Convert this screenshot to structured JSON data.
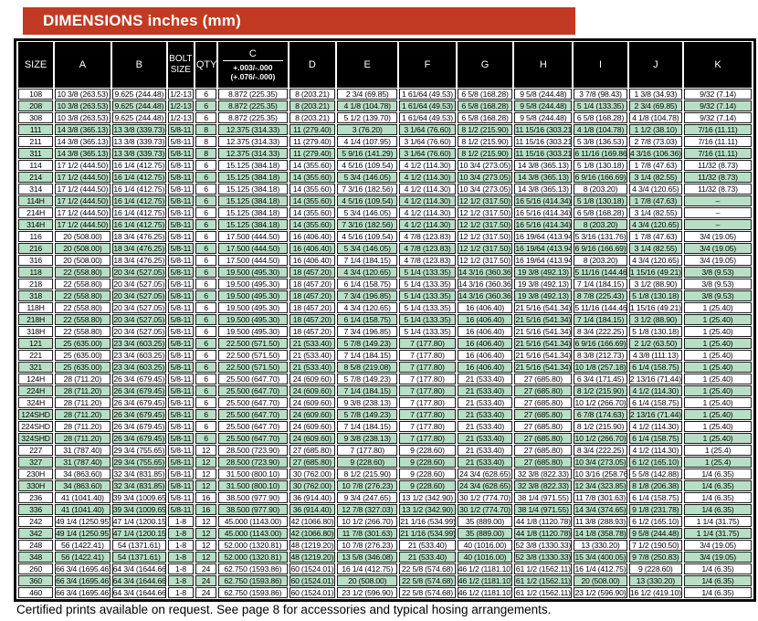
{
  "banner": {
    "title": "DIMENSIONS inches (mm)"
  },
  "footer": {
    "note": "Certified prints available on request. See page 8 for accessories and typical hosing arrangements."
  },
  "colors": {
    "banner_bg": "#c23a21",
    "header_bg": "#000000",
    "row_alt_green": "#b8dfc6",
    "border": "#000000"
  },
  "table": {
    "columns": [
      {
        "key": "size",
        "label": "SIZE"
      },
      {
        "key": "a",
        "label": "A"
      },
      {
        "key": "b",
        "label": "B"
      },
      {
        "key": "bolt-size",
        "label": "BOLT SIZE",
        "lines": [
          "BOLT",
          "SIZE"
        ]
      },
      {
        "key": "qty",
        "label": "QTY"
      },
      {
        "key": "c",
        "label": "C",
        "tolerances": [
          "+.003/-.000",
          "(+.076/-.000)"
        ]
      },
      {
        "key": "d",
        "label": "D"
      },
      {
        "key": "e",
        "label": "E"
      },
      {
        "key": "f",
        "label": "F"
      },
      {
        "key": "g",
        "label": "G"
      },
      {
        "key": "h",
        "label": "H"
      },
      {
        "key": "i",
        "label": "I"
      },
      {
        "key": "j",
        "label": "J"
      },
      {
        "key": "k",
        "label": "K"
      }
    ],
    "col_widths": [
      "4.9%",
      "7.8%",
      "7.6%",
      "3.6%",
      "3.0%",
      "9.7%",
      "6.5%",
      "8.5%",
      "7.9%",
      "7.8%",
      "8.1%",
      "7.5%",
      "7.5%",
      "9.5%"
    ],
    "rows": [
      [
        "108",
        "10 3/8 (263.53)",
        "9.625 (244.48)",
        "1/2-13",
        "6",
        "8.872 (225.35)",
        "8 (203.21)",
        "2 3/4 (69.85)",
        "1 61/64 (49.53)",
        "6 5/8 (168.28)",
        "9 5/8 (244.48)",
        "3 7/8 (98.43)",
        "1 3/8 (34.93)",
        "9/32 (7.14)"
      ],
      [
        "208",
        "10 3/8 (263.53)",
        "9.625 (244.48)",
        "1/2-13",
        "6",
        "8.872 (225.35)",
        "8 (203.21)",
        "4 1/8 (104.78)",
        "1 61/64 (49.53)",
        "6 5/8 (168.28)",
        "9 5/8 (244.48)",
        "5 1/4 (133.35)",
        "2 3/4 (69.85)",
        "9/32 (7.14)"
      ],
      [
        "308",
        "10 3/8 (263.53)",
        "9.625 (244.48)",
        "1/2-13",
        "6",
        "8.872 (225.35)",
        "8 (203.21)",
        "5 1/2 (139.70)",
        "1 61/64 (49.53)",
        "6 5/8 (168.28)",
        "9 5/8 (244.48)",
        "6 5/8 (168.28)",
        "4 1/8 (104.78)",
        "9/32 (7.14)"
      ],
      [
        "111",
        "14 3/8 (365.13)",
        "13 3/8 (339.73)",
        "5/8-11",
        "8",
        "12.375 (314.33)",
        "11 (279.40)",
        "3 (76.20)",
        "3 1/64 (76.60)",
        "8 1/2 (215.90)",
        "11 15/16 (303.21)",
        "4 1/8 (104.78)",
        "1 1/2 (38.10)",
        "7/16 (11.11)"
      ],
      [
        "211",
        "14 3/8 (365.13)",
        "13 3/8 (339.73)",
        "5/8-11",
        "8",
        "12.375 (314.33)",
        "11 (279.40)",
        "4 1/4 (107.95)",
        "3 1/64 (76.60)",
        "8 1/2 (215.90)",
        "11 15/16 (303.21)",
        "5 3/8 (136.53)",
        "2 7/8 (73.03)",
        "7/16 (11.11)"
      ],
      [
        "311",
        "14 3/8 (365.13)",
        "13 3/8 (339.73)",
        "5/8-11",
        "8",
        "12.375 (314.33)",
        "11 (279.40)",
        "5 9/16 (141.29)",
        "3 1/64 (76.60)",
        "8 1/2 (215.90)",
        "11 15/16 (303.21)",
        "6 11/16 (169.86)",
        "4 3/16 (106.36)",
        "7/16 (11.11)"
      ],
      [
        "114",
        "17 1/2 (444.50)",
        "16 1/4 (412.75)",
        "5/8-11",
        "6",
        "15.125 (384.18)",
        "14 (355.60)",
        "4 5/16 (109.54)",
        "4 1/2 (114.30)",
        "10 3/4 (273.05)",
        "14 3/8 (365.13)",
        "5 1/8 (130.18)",
        "1 7/8 (47.63)",
        "11/32 (8.73)"
      ],
      [
        "214",
        "17 1/2 (444.50)",
        "16 1/4 (412.75)",
        "5/8-11",
        "6",
        "15.125 (384.18)",
        "14 (355.60)",
        "5 3/4 (146.05)",
        "4 1/2 (114.30)",
        "10 3/4 (273.05)",
        "14 3/8 (365.13)",
        "6 9/16 (166.69)",
        "3 1/4 (82.55)",
        "11/32 (8.73)"
      ],
      [
        "314",
        "17 1/2 (444.50)",
        "16 1/4 (412.75)",
        "5/8-11",
        "6",
        "15.125 (384.18)",
        "14 (355.60)",
        "7 3/16 (182.56)",
        "4 1/2 (114.30)",
        "10 3/4 (273.05)",
        "14 3/8 (365.13)",
        "8 (203.20)",
        "4 3/4 (120.65)",
        "11/32 (8.73)"
      ],
      [
        "114H",
        "17 1/2 (444.50)",
        "16 1/4 (412.75)",
        "5/8-11",
        "6",
        "15.125 (384.18)",
        "14 (355.60)",
        "4 5/16 (109.54)",
        "4 1/2 (114.30)",
        "12 1/2 (317.50)",
        "16 5/16 (414.34)",
        "5 1/8 (130.18)",
        "1 7/8 (47.63)",
        "–"
      ],
      [
        "214H",
        "17 1/2 (444.50)",
        "16 1/4 (412.75)",
        "5/8-11",
        "6",
        "15.125 (384.18)",
        "14 (355.60)",
        "5 3/4 (146.05)",
        "4 1/2 (114.30)",
        "12 1/2 (317.50)",
        "16 5/16 (414.34)",
        "6 5/8 (168.28)",
        "3 1/4 (82.55)",
        "–"
      ],
      [
        "314H",
        "17 1/2 (444.50)",
        "16 1/4 (412.75)",
        "5/8-11",
        "6",
        "15.125 (384.18)",
        "14 (355.60)",
        "7 3/16 (182.56)",
        "4 1/2 (114.30)",
        "12 1/2 (317.50)",
        "16 5/16 (414.34)",
        "8 (203.20)",
        "4 3/4 (120.65)",
        "–"
      ],
      [
        "116",
        "20 (508.00)",
        "18 3/4 (476.25)",
        "5/8-11",
        "6",
        "17.500 (444.50)",
        "16 (406.40)",
        "4 5/16 (109.54)",
        "4 7/8 (123.83)",
        "12 1/2 (317.50)",
        "16 19/64 (413.94)",
        "5 3/16 (131.76)",
        "1 7/8 (47.63)",
        "3/4 (19.05)"
      ],
      [
        "216",
        "20 (508.00)",
        "18 3/4 (476.25)",
        "5/8-11",
        "6",
        "17.500 (444.50)",
        "16 (406.40)",
        "5 3/4 (146.05)",
        "4 7/8 (123.83)",
        "12 1/2 (317.50)",
        "16 19/64 (413.94)",
        "6 9/16 (166.69)",
        "3 1/4 (82.55)",
        "3/4 (19.05)"
      ],
      [
        "316",
        "20 (508.00)",
        "18 3/4 (476.25)",
        "5/8-11",
        "6",
        "17.500 (444.50)",
        "16 (406.40)",
        "7 1/4 (184.15)",
        "4 7/8 (123.83)",
        "12 1/2 (317.50)",
        "16 19/64 (413.94)",
        "8 (203.20)",
        "4 3/4 (120.65)",
        "3/4 (19.05)"
      ],
      [
        "118",
        "22 (558.80)",
        "20 3/4 (527.05)",
        "5/8-11",
        "6",
        "19.500 (495.30)",
        "18 (457.20)",
        "4 3/4 (120.65)",
        "5 1/4 (133.35)",
        "14 3/16 (360.36)",
        "19 3/8 (492.13)",
        "5 11/16 (144.46)",
        "1 15/16 (49.21)",
        "3/8 (9.53)"
      ],
      [
        "218",
        "22 (558.80)",
        "20 3/4 (527.05)",
        "5/8-11",
        "6",
        "19.500 (495.30)",
        "18 (457.20)",
        "6 1/4 (158.75)",
        "5 1/4 (133.35)",
        "14 3/16 (360.36)",
        "19 3/8 (492.13)",
        "7 1/4 (184.15)",
        "3 1/2 (88.90)",
        "3/8 (9.53)"
      ],
      [
        "318",
        "22 (558.80)",
        "20 3/4 (527.05)",
        "5/8-11",
        "6",
        "19.500 (495.30)",
        "18 (457.20)",
        "7 3/4 (196.85)",
        "5 1/4 (133.35)",
        "14 3/16 (360.36)",
        "19 3/8 (492.13)",
        "8 7/8 (225.43)",
        "5 1/8 (130.18)",
        "3/8 (9.53)"
      ],
      [
        "118H",
        "22 (558.80)",
        "20 3/4 (527.05)",
        "5/8-11",
        "6",
        "19.500 (495.30)",
        "18 (457.20)",
        "4 3/4 (120.65)",
        "5 1/4 (133.35)",
        "16 (406.40)",
        "21 5/16 (541.34)",
        "5 11/16 (144.46)",
        "1 15/16 (49.21)",
        "1 (25.40)"
      ],
      [
        "218H",
        "22 (558.80)",
        "20 3/4 (527.05)",
        "5/8-11",
        "6",
        "19.500 (495.30)",
        "18 (457.20)",
        "6 1/4 (158.75)",
        "5 1/4 (133.35)",
        "16 (406.40)",
        "21 5/16 (541.34)",
        "7 1/4 (184.15)",
        "3 1/2 (88.90)",
        "1 (25.40)"
      ],
      [
        "318H",
        "22 (558.80)",
        "20 3/4 (527.05)",
        "5/8-11",
        "6",
        "19.500 (495.30)",
        "18 (457.20)",
        "7 3/4 (196.85)",
        "5 1/4 (133.35)",
        "16 (406.40)",
        "21 5/16 (541.34)",
        "8 3/4 (222.25)",
        "5 1/8 (130.18)",
        "1 (25.40)"
      ],
      [
        "121",
        "25 (635.00)",
        "23 3/4 (603.25)",
        "5/8-11",
        "6",
        "22.500 (571.50)",
        "21 (533.40)",
        "5 7/8 (149.23)",
        "7 (177.80)",
        "16 (406.40)",
        "21 5/16 (541.34)",
        "6 9/16 (166.69)",
        "2 1/2 (63.50)",
        "1 (25.40)"
      ],
      [
        "221",
        "25 (635.00)",
        "23 3/4 (603.25)",
        "5/8-11",
        "6",
        "22.500 (571.50)",
        "21 (533.40)",
        "7 1/4 (184.15)",
        "7 (177.80)",
        "16 (406.40)",
        "21 5/16 (541.34)",
        "8 3/8 (212.73)",
        "4 3/8 (111.13)",
        "1 (25.40)"
      ],
      [
        "321",
        "25 (635.00)",
        "23 3/4 (603.25)",
        "5/8-11",
        "6",
        "22.500 (571.50)",
        "21 (533.40)",
        "8 5/8 (219.08)",
        "7 (177.80)",
        "16 (406.40)",
        "21 5/16 (541.34)",
        "10 1/8 (257.18)",
        "6 1/4 (158.75)",
        "1 (25.40)"
      ],
      [
        "124H",
        "28 (711.20)",
        "26 3/4 (679.45)",
        "5/8-11",
        "6",
        "25.500 (647.70)",
        "24 (609.60)",
        "5 7/8 (149.23)",
        "7 (177.80)",
        "21 (533.40)",
        "27 (685.80)",
        "6 3/4 (171.45)",
        "2 13/16 (71.44)",
        "1 (25.40)"
      ],
      [
        "224H",
        "28 (711.20)",
        "26 3/4 (679.45)",
        "5/8-11",
        "6",
        "25.500 (647.70)",
        "24 (609.60)",
        "7 1/4 (184.15)",
        "7 (177.80)",
        "21 (533.40)",
        "27 (685.80)",
        "8 1/2 (215.90)",
        "4 1/2 (114.30)",
        "1 (25.40)"
      ],
      [
        "324H",
        "28 (711.20)",
        "26 3/4 (679.45)",
        "5/8-11",
        "6",
        "25.500 (647.70)",
        "24 (609.60)",
        "9 3/8 (238.13)",
        "7 (177.80)",
        "21 (533.40)",
        "27 (685.80)",
        "10 1/2 (266.70)",
        "6 1/4 (158.75)",
        "1 (25.40)"
      ],
      [
        "124SHD",
        "28 (711.20)",
        "26 3/4 (679.45)",
        "5/8-11",
        "6",
        "25.500 (647.70)",
        "24 (609.60)",
        "5 7/8 (149.23)",
        "7 (177.80)",
        "21 (533.40)",
        "27 (685.80)",
        "6 7/8 (174.63)",
        "2 13/16 (71.44)",
        "1 (25.40)"
      ],
      [
        "224SHD",
        "28 (711.20)",
        "26 3/4 (679.45)",
        "5/8-11",
        "6",
        "25.500 (647.70)",
        "24 (609.60)",
        "7 1/4 (184.15)",
        "7 (177.80)",
        "21 (533.40)",
        "27 (685.80)",
        "8 1/2 (215.90)",
        "4 1/2 (114.30)",
        "1 (25.40)"
      ],
      [
        "324SHD",
        "28 (711.20)",
        "26 3/4 (679.45)",
        "5/8-11",
        "6",
        "25.500 (647.70)",
        "24 (609.60)",
        "9 3/8 (238.13)",
        "7 (177.80)",
        "21 (533.40)",
        "27 (685.80)",
        "10 1/2 (266.70)",
        "6 1/4 (158.75)",
        "1 (25.40)"
      ],
      [
        "227",
        "31 (787.40)",
        "29 3/4 (755.65)",
        "5/8-11",
        "12",
        "28.500 (723.90)",
        "27 (685.80)",
        "7 (177.80)",
        "9 (228.60)",
        "21 (533.40)",
        "27 (685.80)",
        "8 3/4 (222.25)",
        "4 1/2 (114.30)",
        "1 (25.4)"
      ],
      [
        "327",
        "31 (787.40)",
        "29 3/4 (755.65)",
        "5/8-11",
        "12",
        "28.500 (723.90)",
        "27 (685.80)",
        "9 (228.60)",
        "9 (228.60)",
        "21 (533.40)",
        "27 (685.80)",
        "10 3/4 (273.05)",
        "6 1/2 (165.10)",
        "1 (25.4)"
      ],
      [
        "230H",
        "34 (863.60)",
        "32 3/4 (831.85)",
        "5/8-11",
        "12",
        "31.500 (800.10)",
        "30 (762.00)",
        "8 1/2 (215.90)",
        "9 (228.60)",
        "24 3/4 (628.65)",
        "32 3/8 (822.33)",
        "10 3/16 (258.76)",
        "5 5/8 (142.88)",
        "1/4 (6.35)"
      ],
      [
        "330H",
        "34 (863.60)",
        "32 3/4 (831.85)",
        "5/8-11",
        "12",
        "31.500 (800.10)",
        "30 (762.00)",
        "10 7/8 (276.23)",
        "9 (228.60)",
        "24 3/4 (628.65)",
        "32 3/8 (822.33)",
        "12 3/4 (323.85)",
        "8 1/8 (206.38)",
        "1/4 (6.35)"
      ],
      [
        "236",
        "41 (1041.40)",
        "39 3/4 (1009.65)",
        "5/8-11",
        "16",
        "38.500 (977.90)",
        "36 (914.40)",
        "9 3/4 (247.65)",
        "13 1/2 (342.90)",
        "30 1/2 (774.70)",
        "38 1/4 (971.55)",
        "11 7/8 (301.63)",
        "6 1/4 (158.75)",
        "1/4 (6.35)"
      ],
      [
        "336",
        "41 (1041.40)",
        "39 3/4 (1009.65)",
        "5/8-11",
        "16",
        "38.500 (977.90)",
        "36 (914.40)",
        "12 7/8 (327.03)",
        "13 1/2 (342.90)",
        "30 1/2 (774.70)",
        "38 1/4 (971.55)",
        "14 3/4 (374.65)",
        "9 1/8 (231.78)",
        "1/4 (6.35)"
      ],
      [
        "242",
        "49 1/4 (1250.95)",
        "47 1/4 (1200.15)",
        "1-8",
        "12",
        "45.000 (1143.00)",
        "42 (1066.80)",
        "10 1/2 (266.70)",
        "21 1/16 (534.99)",
        "35 (889.00)",
        "44 1/8 (1120.78)",
        "11 3/8 (288.93)",
        "6 1/2 (165.10)",
        "1 1/4 (31.75)"
      ],
      [
        "342",
        "49 1/4 (1250.95)",
        "47 1/4 (1200.15)",
        "1-8",
        "12",
        "45.000 (1143.00)",
        "42 (1066.80)",
        "11 7/8 (301.63)",
        "21 1/16 (534.99)",
        "35 (889.00)",
        "44 1/8 (1120.78)",
        "14 1/8 (358.78)",
        "9 5/8 (244.48)",
        "1 1/4 (31.75)"
      ],
      [
        "248",
        "56 (1422.41)",
        "54 (1371.61)",
        "1-8",
        "12",
        "52.000 (1320.81)",
        "48 (1219.20)",
        "10 7/8 (276.23)",
        "21 (533.40)",
        "40 (1016.00)",
        "52 3/8 (1330.33)",
        "13 (330.20)",
        "7 1/2 (190.50)",
        "3/4 (19.05)"
      ],
      [
        "348",
        "56 (1422.41)",
        "54 (1371.61)",
        "1-8",
        "12",
        "52.000 (1320.81)",
        "48 (1219.20)",
        "13 5/8 (346.08)",
        "21 (533.40)",
        "40 (1016.00)",
        "52 3/8 (1330.33)",
        "15 3/4 (400.05)",
        "9 7/8 (250.83)",
        "3/4 (19.05)"
      ],
      [
        "260",
        "66 3/4 (1695.46)",
        "64 3/4 (1644.66)",
        "1-8",
        "24",
        "62.750 (1593.86)",
        "60 (1524.01)",
        "16 1/4 (412.75)",
        "22 5/8 (574.68)",
        "46 1/2 (1181.10)",
        "61 1/2 (1562.11)",
        "16 1/4 (412.75)",
        "9 (228.60)",
        "1/4 (6.35)"
      ],
      [
        "360",
        "66 3/4 (1695.46)",
        "64 3/4 (1644.66)",
        "1-8",
        "24",
        "62.750 (1593.86)",
        "60 (1524.01)",
        "20 (508.00)",
        "22 5/8 (574.68)",
        "46 1/2 (1181.10)",
        "61 1/2 (1562.11)",
        "20 (508.00)",
        "13 (330.20)",
        "1/4 (6.35)"
      ],
      [
        "460",
        "66 3/4 (1695.46)",
        "64 3/4 (1644.66)",
        "1-8",
        "24",
        "62.750 (1593.86)",
        "60 (1524.01)",
        "23 1/2 (596.90)",
        "22 5/8 (574.68)",
        "46 1/2 (1181.10)",
        "61 1/2 (1562.11)",
        "23 1/2 (596.90)",
        "16 1/2 (419.10)",
        "1/4 (6.35)"
      ]
    ]
  }
}
